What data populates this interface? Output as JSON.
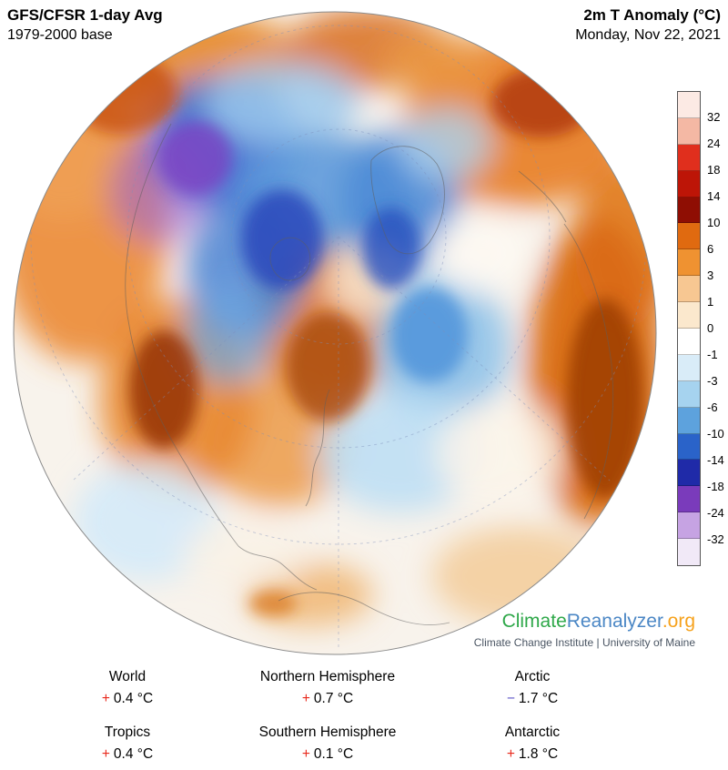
{
  "header": {
    "left_title": "GFS/CFSR 1-day Avg",
    "left_subtitle": "1979-2000 base",
    "right_title": "2m T Anomaly (°C)",
    "right_subtitle": "Monday, Nov 22, 2021"
  },
  "legend": {
    "unit": "°C",
    "ticks": [
      "32",
      "24",
      "18",
      "14",
      "10",
      "6",
      "3",
      "1",
      "0",
      "-1",
      "-3",
      "-6",
      "-10",
      "-14",
      "-18",
      "-24",
      "-32"
    ],
    "colors": [
      "#fceae4",
      "#f4b8a4",
      "#e02f1d",
      "#bd1507",
      "#8f0e03",
      "#e06a10",
      "#ef9231",
      "#f7c792",
      "#fbe8cd",
      "#ffffff",
      "#d9ecf8",
      "#a6d3ef",
      "#5da2dd",
      "#2a63c9",
      "#1f2aa8",
      "#7a3bbb",
      "#c6a3e3",
      "#f1e9f7"
    ]
  },
  "branding": {
    "logo_parts": [
      {
        "text": "Climate",
        "color": "#2fa84a"
      },
      {
        "text": "Reanalyzer",
        "color": "#4b87c5"
      },
      {
        "text": ".org",
        "color": "#f6a21d"
      }
    ],
    "subtitle": "Climate Change Institute | University of Maine"
  },
  "stats": [
    {
      "label": "World",
      "sign": "+",
      "value": "0.4 °C",
      "sign_color": "#e8291c"
    },
    {
      "label": "Northern Hemisphere",
      "sign": "+",
      "value": "0.7 °C",
      "sign_color": "#e8291c"
    },
    {
      "label": "Arctic",
      "sign": "−",
      "value": "1.7 °C",
      "sign_color": "#5a52c8"
    },
    {
      "label": "Tropics",
      "sign": "+",
      "value": "0.4 °C",
      "sign_color": "#e8291c"
    },
    {
      "label": "Southern Hemisphere",
      "sign": "+",
      "value": "0.1 °C",
      "sign_color": "#e8291c"
    },
    {
      "label": "Antarctic",
      "sign": "+",
      "value": "1.8 °C",
      "sign_color": "#e8291c"
    }
  ]
}
